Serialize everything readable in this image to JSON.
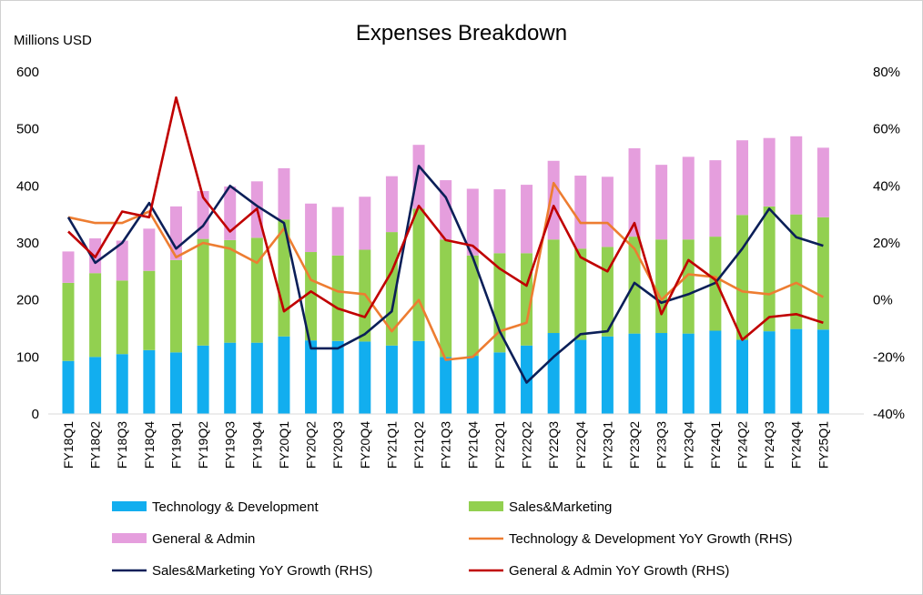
{
  "chart_data": {
    "type": "bar",
    "title": "Expenses Breakdown",
    "ylabel": "Millions USD",
    "ylim": [
      0,
      600
    ],
    "y_ticks": [
      "0",
      "100",
      "200",
      "300",
      "400",
      "500",
      "600"
    ],
    "y2lim": [
      -40,
      80
    ],
    "y2_ticks": [
      "-40%",
      "-20%",
      "0%",
      "20%",
      "40%",
      "60%",
      "80%"
    ],
    "grid": false,
    "legend_position": "bottom",
    "categories": [
      "FY18Q1",
      "FY18Q2",
      "FY18Q3",
      "FY18Q4",
      "FY19Q1",
      "FY19Q2",
      "FY19Q3",
      "FY19Q4",
      "FY20Q1",
      "FY20Q2",
      "FY20Q3",
      "FY20Q4",
      "FY21Q1",
      "FY21Q2",
      "FY21Q3",
      "FY21Q4",
      "FY22Q1",
      "FY22Q2",
      "FY22Q3",
      "FY22Q4",
      "FY23Q1",
      "FY23Q2",
      "FY23Q3",
      "FY23Q4",
      "FY24Q1",
      "FY24Q2",
      "FY24Q3",
      "FY24Q4",
      "FY25Q1"
    ],
    "bar_series": [
      {
        "name": "Technology & Development",
        "color": "#12aeef",
        "values": [
          93,
          100,
          105,
          112,
          108,
          120,
          125,
          125,
          136,
          129,
          128,
          127,
          120,
          128,
          100,
          102,
          108,
          120,
          142,
          130,
          136,
          141,
          142,
          141,
          146,
          130,
          145,
          149,
          148
        ]
      },
      {
        "name": "Sales&Marketing",
        "color": "#92d050",
        "values": [
          137,
          147,
          129,
          139,
          162,
          187,
          180,
          184,
          205,
          155,
          150,
          161,
          199,
          232,
          206,
          176,
          174,
          162,
          164,
          160,
          157,
          170,
          164,
          165,
          165,
          219,
          219,
          201,
          197
        ]
      },
      {
        "name": "General & Admin",
        "color": "#e59edd",
        "values": [
          55,
          61,
          70,
          74,
          94,
          84,
          94,
          99,
          90,
          85,
          85,
          93,
          98,
          112,
          104,
          117,
          112,
          120,
          138,
          128,
          123,
          155,
          131,
          145,
          134,
          131,
          120,
          137,
          122
        ]
      }
    ],
    "line_series": [
      {
        "name": "Technology & Development YoY Growth (RHS)",
        "color": "#ed7d31",
        "values": [
          29,
          27,
          27,
          31,
          15,
          20,
          18,
          13,
          25,
          7,
          3,
          2,
          -11,
          0,
          -21,
          -20,
          -11,
          -8,
          41,
          27,
          27,
          18,
          0,
          9,
          8,
          3,
          2,
          6,
          1
        ]
      },
      {
        "name": "Sales&Marketing YoY Growth (RHS)",
        "color": "#0b1f58",
        "values": [
          29,
          13,
          20,
          34,
          18,
          26,
          40,
          33,
          27,
          -17,
          -17,
          -12,
          -4,
          47,
          36,
          15,
          -11,
          -29,
          -20,
          -12,
          -11,
          6,
          -1,
          2,
          6,
          18,
          32,
          22,
          19
        ]
      },
      {
        "name": "General & Admin YoY Growth (RHS)",
        "color": "#c00000",
        "values": [
          24,
          15,
          31,
          29,
          71,
          36,
          24,
          32,
          -4,
          3,
          -3,
          -6,
          10,
          33,
          21,
          19,
          11,
          5,
          33,
          15,
          10,
          27,
          -5,
          14,
          7,
          -14,
          -6,
          -5,
          -8
        ]
      }
    ]
  }
}
